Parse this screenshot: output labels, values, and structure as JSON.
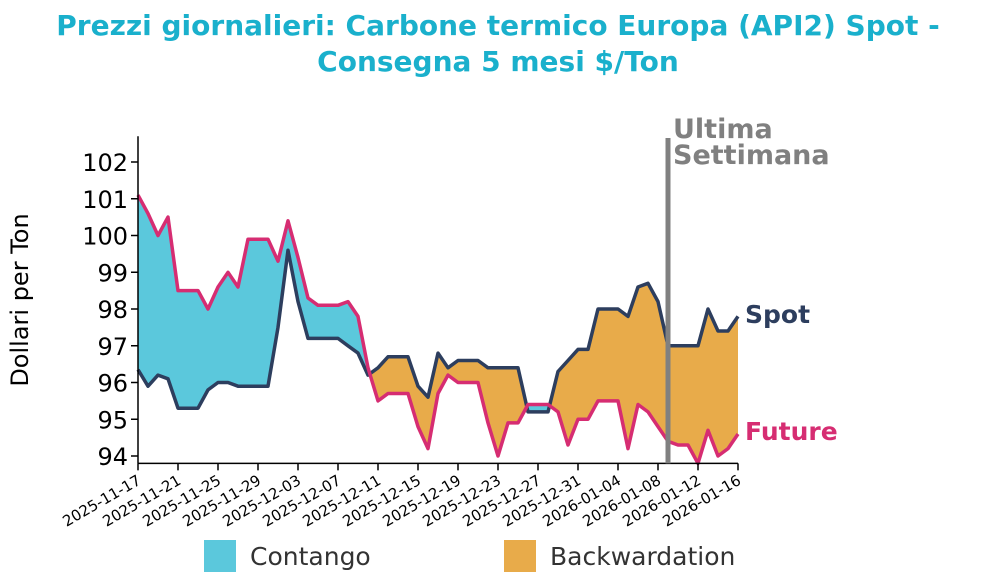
{
  "chart_data": {
    "type": "area",
    "title_line1": "Prezzi giornalieri: Carbone termico Europa (API2) Spot -",
    "title_line2": "Consegna 5 mesi $/Ton",
    "ylabel": "Dollari per Ton",
    "xlabel": "",
    "ylim": [
      93.8,
      102.7
    ],
    "yticks": [
      94,
      95,
      96,
      97,
      98,
      99,
      100,
      101,
      102
    ],
    "start_date": "2025-11-17",
    "xtick_labels": [
      "2025-11-17",
      "2025-11-21",
      "2025-11-25",
      "2025-11-29",
      "2025-12-03",
      "2025-12-07",
      "2025-12-11",
      "2025-12-15",
      "2025-12-19",
      "2025-12-23",
      "2025-12-27",
      "2025-12-31",
      "2026-01-04",
      "2026-01-08",
      "2026-01-12",
      "2026-01-16"
    ],
    "series": [
      {
        "name": "Spot",
        "color": "#2d3e5e",
        "values": [
          96.35,
          95.9,
          96.2,
          96.1,
          95.3,
          95.3,
          95.3,
          95.8,
          96.0,
          96.0,
          95.9,
          95.9,
          95.9,
          95.9,
          97.5,
          99.6,
          98.2,
          97.2,
          97.2,
          97.2,
          97.2,
          97.0,
          96.8,
          96.2,
          96.4,
          96.7,
          96.7,
          96.7,
          95.9,
          95.6,
          96.8,
          96.4,
          96.6,
          96.6,
          96.6,
          96.4,
          96.4,
          96.4,
          96.4,
          95.2,
          95.2,
          95.2,
          96.3,
          96.6,
          96.9,
          96.9,
          98.0,
          98.0,
          98.0,
          97.8,
          98.6,
          98.7,
          98.2,
          97.0,
          97.0,
          97.0,
          97.0,
          98.0,
          97.4,
          97.4,
          97.8
        ]
      },
      {
        "name": "Future",
        "color": "#d62d72",
        "values": [
          101.1,
          100.6,
          100.0,
          100.5,
          98.5,
          98.5,
          98.5,
          98.0,
          98.6,
          99.0,
          98.6,
          99.9,
          99.9,
          99.9,
          99.3,
          100.4,
          99.4,
          98.3,
          98.1,
          98.1,
          98.1,
          98.2,
          97.8,
          96.4,
          95.5,
          95.7,
          95.7,
          95.7,
          94.8,
          94.2,
          95.7,
          96.2,
          96.0,
          96.0,
          96.0,
          94.9,
          94.0,
          94.9,
          94.9,
          95.4,
          95.4,
          95.4,
          95.2,
          94.3,
          95.0,
          95.0,
          95.5,
          95.5,
          95.5,
          94.2,
          95.4,
          95.2,
          94.8,
          94.4,
          94.3,
          94.3,
          93.8,
          94.7,
          94.0,
          94.2,
          94.6
        ]
      }
    ],
    "marker_day_index": 53,
    "marker_label_1": "Ultima",
    "marker_label_2": "Settimana",
    "legend": [
      {
        "label": "Contango",
        "color": "#5bc8dc"
      },
      {
        "label": "Backwardation",
        "color": "#e8ab4a"
      }
    ],
    "legend_position": "bottom"
  }
}
